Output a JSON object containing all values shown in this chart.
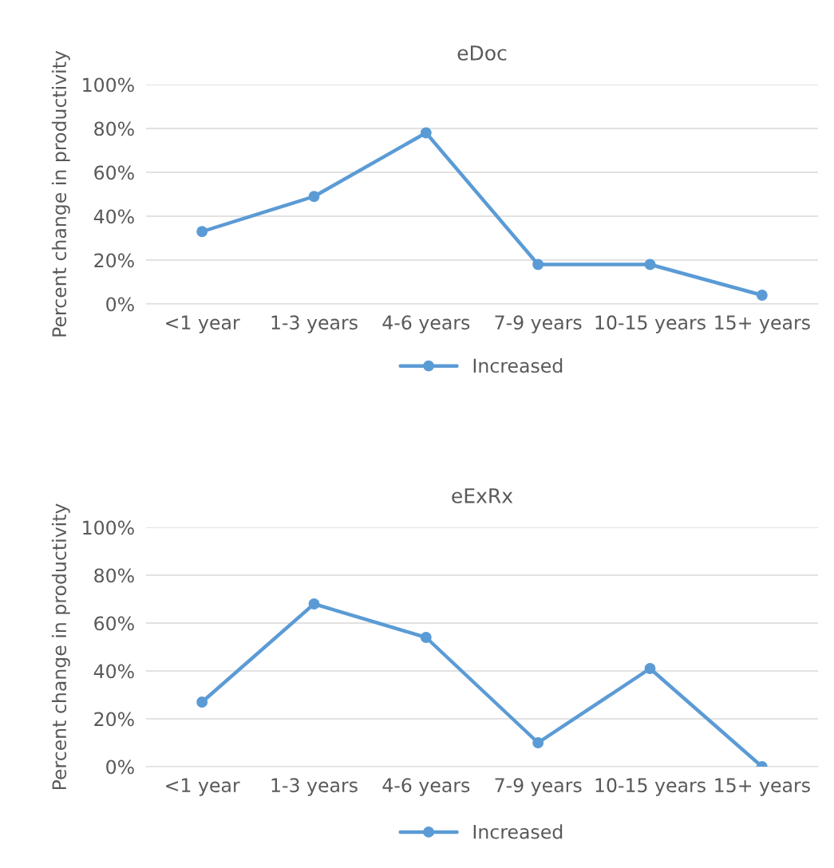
{
  "chart_data": [
    {
      "type": "line",
      "title": "eDoc",
      "ylabel": "Percent change in productivity",
      "categories": [
        "<1 year",
        "1-3 years",
        "4-6 years",
        "7-9 years",
        "10-15 years",
        "15+ years"
      ],
      "series": [
        {
          "name": "Increased",
          "color": "#5b9bd5",
          "values": [
            33,
            49,
            78,
            18,
            18,
            4
          ]
        }
      ],
      "ylim": [
        0,
        100
      ],
      "yticks": [
        {
          "value": 0,
          "label": "0%"
        },
        {
          "value": 20,
          "label": "20%"
        },
        {
          "value": 40,
          "label": "40%"
        },
        {
          "value": 60,
          "label": "60%"
        },
        {
          "value": 80,
          "label": "80%"
        },
        {
          "value": 100,
          "label": "100%"
        }
      ],
      "grid": "y",
      "legend": "bottom",
      "marker": "circle",
      "line_style": "solid"
    },
    {
      "type": "line",
      "title": "eExRx",
      "ylabel": "Percent change in productivity",
      "categories": [
        "<1 year",
        "1-3 years",
        "4-6 years",
        "7-9 years",
        "10-15 years",
        "15+ years"
      ],
      "series": [
        {
          "name": "Increased",
          "color": "#5b9bd5",
          "values": [
            27,
            68,
            54,
            10,
            41,
            0
          ]
        }
      ],
      "ylim": [
        0,
        100
      ],
      "yticks": [
        {
          "value": 0,
          "label": "0%"
        },
        {
          "value": 20,
          "label": "20%"
        },
        {
          "value": 40,
          "label": "40%"
        },
        {
          "value": 60,
          "label": "60%"
        },
        {
          "value": 80,
          "label": "80%"
        },
        {
          "value": 100,
          "label": "100%"
        }
      ],
      "grid": "y",
      "legend": "bottom",
      "marker": "circle",
      "line_style": "solid"
    }
  ]
}
